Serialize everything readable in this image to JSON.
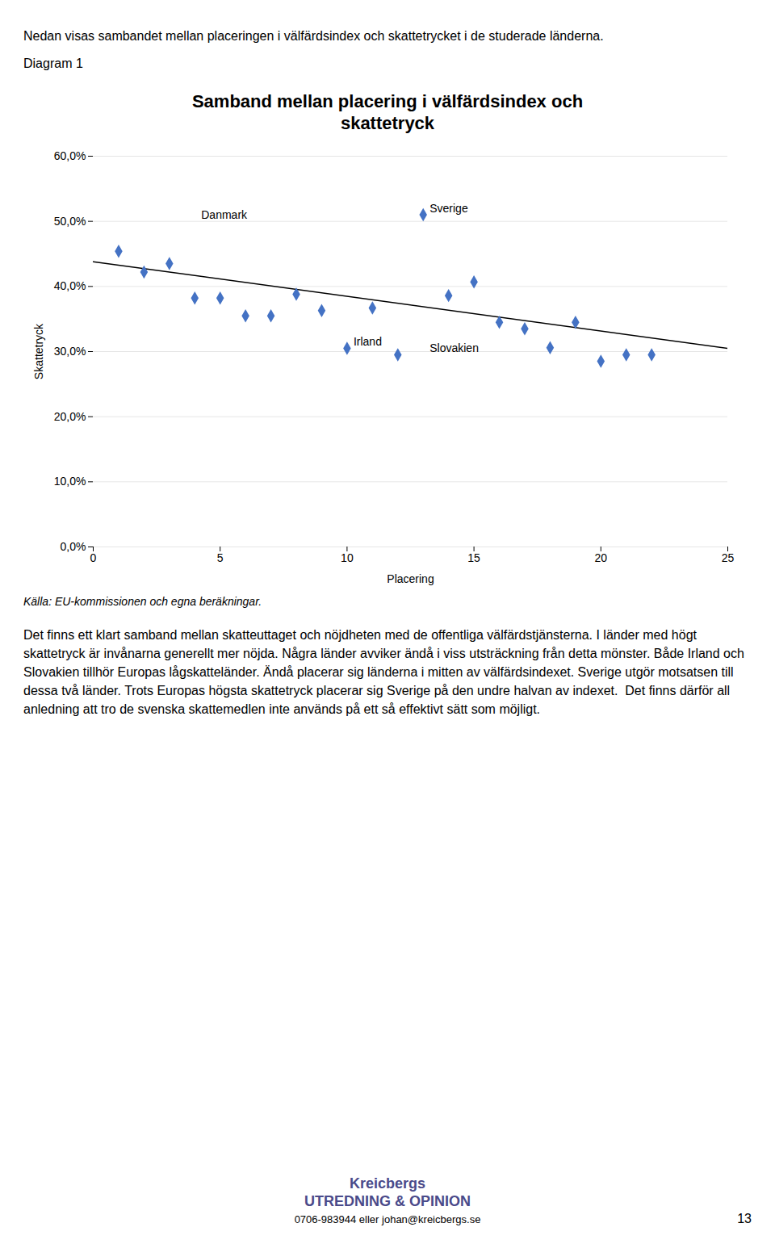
{
  "chart_data": {
    "type": "scatter",
    "title": "Samband mellan placering i välfärdsindex och\nskattetryck",
    "xlabel": "Placering",
    "ylabel": "Skattetryck",
    "x": [
      1,
      2,
      3,
      4,
      5,
      6,
      7,
      8,
      9,
      10,
      11,
      12,
      13,
      14,
      15,
      16,
      17,
      18,
      19,
      20,
      21,
      22
    ],
    "values": [
      0.454,
      0.422,
      0.435,
      0.382,
      0.382,
      0.355,
      0.355,
      0.388,
      0.363,
      0.305,
      0.367,
      0.295,
      0.51,
      0.386,
      0.407,
      0.345,
      0.335,
      0.306,
      0.345,
      0.285,
      0.295,
      0.295
    ],
    "color": "#4472C4",
    "marker": "diamond",
    "trendline": {
      "x": [
        0,
        25
      ],
      "values": [
        0.438,
        0.305
      ],
      "color": "#000000"
    },
    "annotations": [
      {
        "text": "Danmark",
        "x": 4,
        "y": 0.499
      },
      {
        "text": "Sverige",
        "x": 13,
        "y": 0.51
      },
      {
        "text": "Irland",
        "x": 10,
        "y": 0.305
      },
      {
        "text": "Slovakien",
        "x": 13,
        "y": 0.295
      }
    ],
    "xlim": [
      0,
      25
    ],
    "ylim": [
      0.0,
      0.6
    ],
    "xticks": [
      0,
      5,
      10,
      15,
      20,
      25
    ],
    "yticks": [
      {
        "value": 0.0,
        "label": "0,0%"
      },
      {
        "value": 0.1,
        "label": "10,0%"
      },
      {
        "value": 0.2,
        "label": "20,0%"
      },
      {
        "value": 0.3,
        "label": "30,0%"
      },
      {
        "value": 0.4,
        "label": "40,0%"
      },
      {
        "value": 0.5,
        "label": "50,0%"
      },
      {
        "value": 0.6,
        "label": "60,0%"
      }
    ],
    "grid": "y"
  },
  "header_text": "Nedan visas sambandet mellan placeringen i välfärdsindex och skattetrycket i de studerade länderna.",
  "diagram_label": "Diagram 1",
  "source_text": "Källa: EU-kommissionen och egna beräkningar.",
  "body_text": "Det finns ett klart samband mellan skatteuttaget och nöjdheten med de offentliga välfärdstjänsterna. I länder med högt skattetryck är invånarna generellt mer nöjda. Några länder avviker ändå i viss utsträckning från detta mönster. Både Irland och Slovakien tillhör Europas lågskatteländer. Ändå placerar sig länderna i mitten av välfärdsindexet. Sverige utgör motsatsen till dessa två länder. Trots Europas högsta skattetryck placerar sig Sverige på den undre halvan av indexet.  Det finns därför all anledning att tro de svenska skattemedlen inte används på ett så effektivt sätt som möjligt.",
  "page_number": "13",
  "footer_logo_text": "Kreicbergs\nUTREDNING & OPINION",
  "footer_contact": "0706-983944 eller johan@kreicbergs.se"
}
